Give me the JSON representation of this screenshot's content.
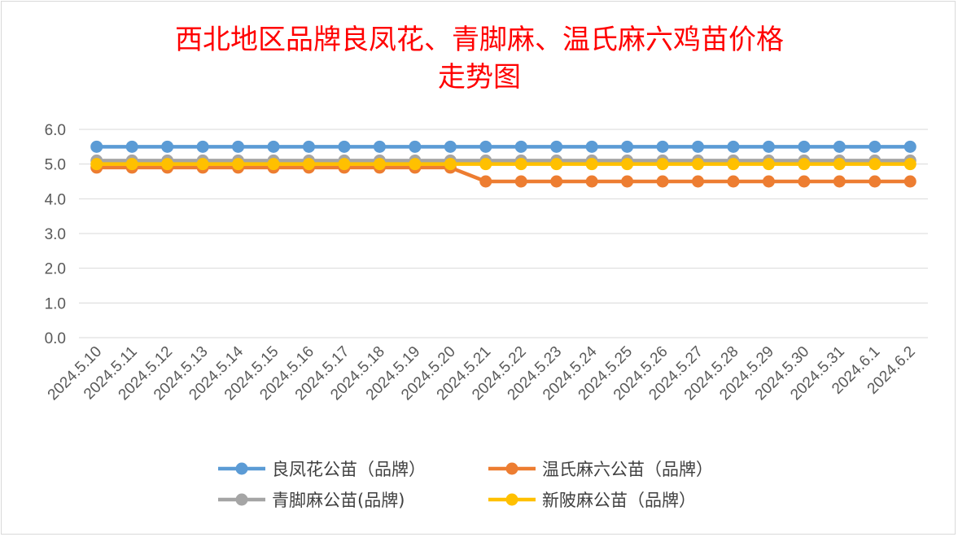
{
  "chart_data": {
    "type": "line",
    "title_lines": [
      "西北地区品牌良凤花、青脚麻、温氏麻六鸡苗价格",
      "走势图"
    ],
    "xlabel": "",
    "ylabel": "",
    "ylim": [
      0,
      6
    ],
    "yticks": [
      "0.0",
      "1.0",
      "2.0",
      "3.0",
      "4.0",
      "5.0",
      "6.0"
    ],
    "grid": true,
    "legend_position": "bottom",
    "categories": [
      "2024.5.10",
      "2024.5.11",
      "2024.5.12",
      "2024.5.13",
      "2024.5.14",
      "2024.5.15",
      "2024.5.16",
      "2024.5.17",
      "2024.5.18",
      "2024.5.19",
      "2024.5.20",
      "2024.5.21",
      "2024.5.22",
      "2024.5.23",
      "2024.5.24",
      "2024.5.25",
      "2024.5.26",
      "2024.5.27",
      "2024.5.28",
      "2024.5.29",
      "2024.5.30",
      "2024.5.31",
      "2024.6.1",
      "2024.6.2"
    ],
    "series": [
      {
        "name": "良凤花公苗（品牌）",
        "color": "#5b9bd5",
        "values": [
          5.5,
          5.5,
          5.5,
          5.5,
          5.5,
          5.5,
          5.5,
          5.5,
          5.5,
          5.5,
          5.5,
          5.5,
          5.5,
          5.5,
          5.5,
          5.5,
          5.5,
          5.5,
          5.5,
          5.5,
          5.5,
          5.5,
          5.5,
          5.5
        ]
      },
      {
        "name": "温氏麻六公苗（品牌）",
        "color": "#ed7d31",
        "values": [
          4.9,
          4.9,
          4.9,
          4.9,
          4.9,
          4.9,
          4.9,
          4.9,
          4.9,
          4.9,
          4.9,
          4.5,
          4.5,
          4.5,
          4.5,
          4.5,
          4.5,
          4.5,
          4.5,
          4.5,
          4.5,
          4.5,
          4.5,
          4.5
        ]
      },
      {
        "name": "青脚麻公苗(品牌)",
        "color": "#a5a5a5",
        "values": [
          5.1,
          5.1,
          5.1,
          5.1,
          5.1,
          5.1,
          5.1,
          5.1,
          5.1,
          5.1,
          5.1,
          5.1,
          5.1,
          5.1,
          5.1,
          5.1,
          5.1,
          5.1,
          5.1,
          5.1,
          5.1,
          5.1,
          5.1,
          5.1
        ]
      },
      {
        "name": "新陂麻公苗（品牌）",
        "color": "#ffc000",
        "values": [
          5.0,
          5.0,
          5.0,
          5.0,
          5.0,
          5.0,
          5.0,
          5.0,
          5.0,
          5.0,
          5.0,
          5.0,
          5.0,
          5.0,
          5.0,
          5.0,
          5.0,
          5.0,
          5.0,
          5.0,
          5.0,
          5.0,
          5.0,
          5.0
        ]
      }
    ]
  }
}
